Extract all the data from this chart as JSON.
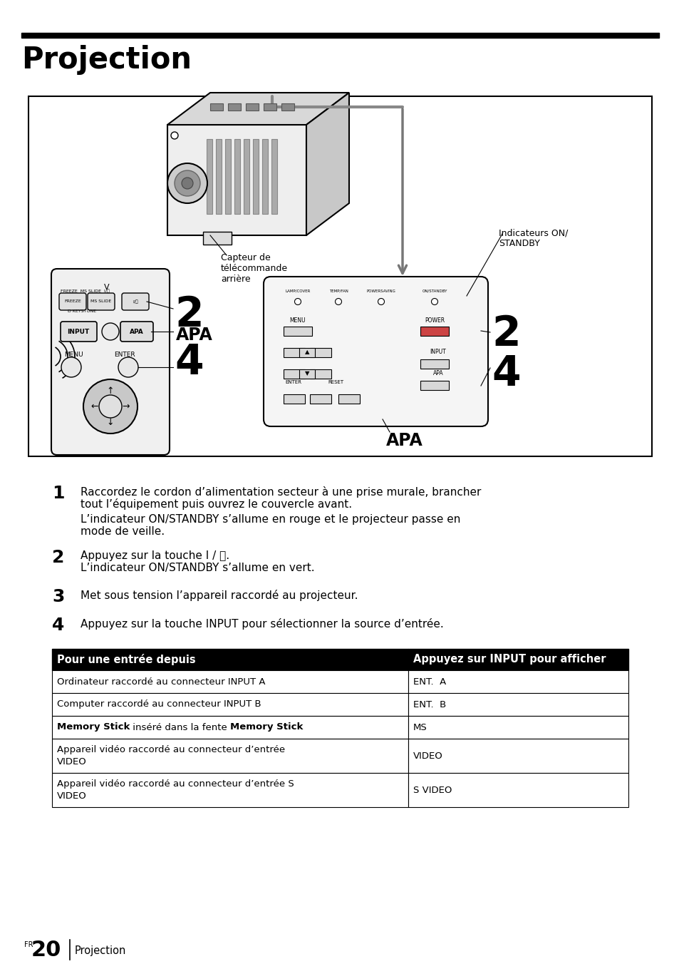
{
  "title": "Projection",
  "bg_color": "#ffffff",
  "step1_text_line1": "Raccordez le cordon d’alimentation secteur à une prise murale, brancher",
  "step1_text_line2": "tout l’équipement puis ouvrez le couvercle avant.",
  "step1_text_line3": "L’indicateur ON/STANDBY s’allume en rouge et le projecteur passe en",
  "step1_text_line4": "mode de veille.",
  "step2_text_line1": "Appuyez sur la touche I / ⏻.",
  "step2_text_line2": "L’indicateur ON/STANDBY s’allume en vert.",
  "step3_text": "Met sous tension l’appareil raccordé au projecteur.",
  "step4_text": "Appuyez sur la touche INPUT pour sélectionner la source d’entrée.",
  "table_header_col1": "Pour une entrée depuis",
  "table_header_col2": "Appuyez sur INPUT pour afficher",
  "table_rows": [
    [
      "Ordinateur raccordé au connecteur INPUT A",
      "ENT.  A"
    ],
    [
      "Computer raccordé au connecteur INPUT B",
      "ENT.  B"
    ],
    [
      "MS_BOLD_Memory Stick MS_END inséré dans la fente MS_BOLD_Memory Stick MS_END",
      "MS"
    ],
    [
      "Appareil vidéo raccordé au connecteur d’entrée\nVIDEO",
      "VIDEO"
    ],
    [
      "Appareil vidéo raccordé au connecteur d’entrée S\nVIDEO",
      "S VIDEO"
    ]
  ],
  "footer_page": "20",
  "footer_text": "Projection",
  "label_capteur": "Capteur de\ntélécommande\narrière",
  "label_indicateurs": "Indicateurs ON/\nSTANDBY",
  "label_2_remote": "2",
  "label_apa_remote": "APA",
  "label_4_remote": "4",
  "label_2_panel": "2",
  "label_4_panel": "4",
  "label_apa_panel": "APA"
}
